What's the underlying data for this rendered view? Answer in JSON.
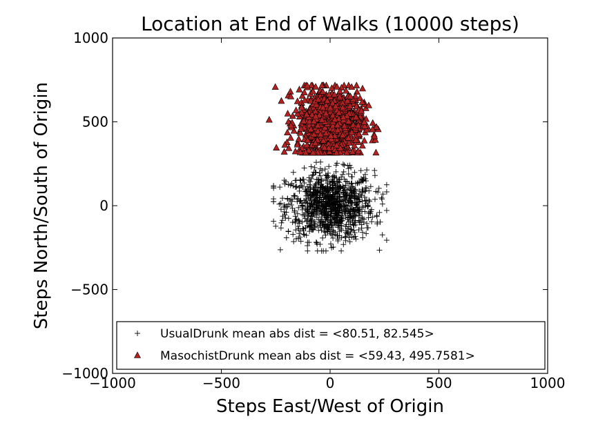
{
  "chart_data": {
    "type": "scatter",
    "title": "Location at End of Walks (10000 steps)",
    "xlabel": "Steps East/West of Origin",
    "ylabel": "Steps North/South of Origin",
    "xlim": [
      -1000,
      1000
    ],
    "ylim": [
      -1000,
      1000
    ],
    "xticks": [
      "−1000",
      "−500",
      "0",
      "500",
      "1000"
    ],
    "yticks": [
      "−1000",
      "−500",
      "0",
      "500",
      "1000"
    ],
    "grid": false,
    "legend_position": "lower center",
    "series": [
      {
        "name": "UsualDrunk mean abs dist = <80.51, 82.545>",
        "marker": "plus",
        "color": "#000000",
        "mean_abs_dist": [
          80.51,
          82.545
        ],
        "center": [
          0,
          0
        ],
        "spread": [
          80.51,
          82.545
        ],
        "count": 1000
      },
      {
        "name": "MasochistDrunk mean abs dist = <59.43, 495.7581>",
        "marker": "triangle",
        "color": "#b22222",
        "mean_abs_dist": [
          59.43,
          495.7581
        ],
        "center": [
          0,
          495.7581
        ],
        "spread": [
          59.43,
          80
        ],
        "count": 1000
      }
    ]
  }
}
